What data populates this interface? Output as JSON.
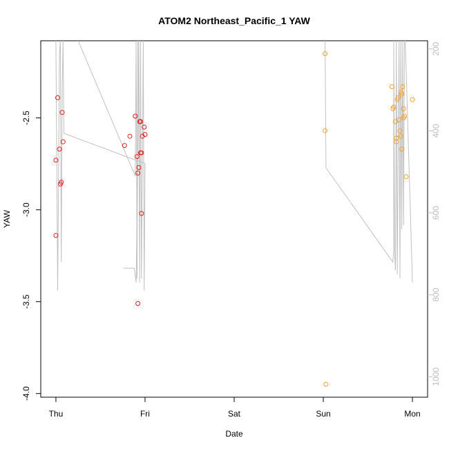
{
  "chart_data": {
    "type": "scatter",
    "title": "ATOM2 Northeast_Pacific_1 YAW",
    "xlabel": "Date",
    "ylabel": "YAW",
    "x_ticks": [
      "Thu",
      "Fri",
      "Sat",
      "Sun",
      "Mon"
    ],
    "xlim_days": [
      -0.17,
      4.17
    ],
    "ylim": [
      -4.02,
      -2.08
    ],
    "y_ticks": [
      -4.0,
      -3.5,
      -3.0,
      -2.5
    ],
    "y_tick_labels": [
      "-4.0",
      "-3.5",
      "-3.0",
      "-2.5"
    ],
    "y2_ticks": [
      200,
      400,
      600,
      800,
      1000
    ],
    "y2_tick_labels": [
      "200",
      "400",
      "600",
      "800",
      "1000"
    ],
    "y2lim": [
      1050,
      180
    ],
    "grid": false,
    "legend": "none",
    "colors": {
      "red_points": "#e41a1c",
      "orange_points": "#f0a030",
      "line": "#c0c0c0",
      "right_axis": "#bdbdbd"
    },
    "series": [
      {
        "color": "red",
        "points": [
          {
            "x": 0.0,
            "y": -2.73
          },
          {
            "x": 0.0,
            "y": -3.14
          },
          {
            "x": 0.02,
            "y": -2.39
          },
          {
            "x": 0.04,
            "y": -2.67
          },
          {
            "x": 0.05,
            "y": -2.86
          },
          {
            "x": 0.06,
            "y": -2.85
          },
          {
            "x": 0.07,
            "y": -2.47
          },
          {
            "x": 0.08,
            "y": -2.63
          },
          {
            "x": 0.77,
            "y": -2.65
          },
          {
            "x": 0.83,
            "y": -2.6
          },
          {
            "x": 0.89,
            "y": -2.49
          },
          {
            "x": 0.91,
            "y": -2.71
          },
          {
            "x": 0.92,
            "y": -3.51
          },
          {
            "x": 0.92,
            "y": -2.8
          },
          {
            "x": 0.93,
            "y": -2.77
          },
          {
            "x": 0.94,
            "y": -2.52
          },
          {
            "x": 0.95,
            "y": -2.52
          },
          {
            "x": 0.95,
            "y": -2.69
          },
          {
            "x": 0.96,
            "y": -2.69
          },
          {
            "x": 0.96,
            "y": -3.02
          },
          {
            "x": 0.97,
            "y": -2.6
          },
          {
            "x": 0.99,
            "y": -2.55
          },
          {
            "x": 1.0,
            "y": -2.59
          }
        ]
      },
      {
        "color": "orange",
        "points": [
          {
            "x": 3.02,
            "y": -2.15
          },
          {
            "x": 3.02,
            "y": -2.57
          },
          {
            "x": 3.03,
            "y": -3.95
          },
          {
            "x": 3.77,
            "y": -2.33
          },
          {
            "x": 3.78,
            "y": -2.45
          },
          {
            "x": 3.79,
            "y": -2.44
          },
          {
            "x": 3.81,
            "y": -2.52
          },
          {
            "x": 3.82,
            "y": -2.61
          },
          {
            "x": 3.82,
            "y": -2.63
          },
          {
            "x": 3.83,
            "y": -2.4
          },
          {
            "x": 3.84,
            "y": -2.39
          },
          {
            "x": 3.85,
            "y": -2.51
          },
          {
            "x": 3.86,
            "y": -2.57
          },
          {
            "x": 3.87,
            "y": -2.36
          },
          {
            "x": 3.87,
            "y": -2.6
          },
          {
            "x": 3.88,
            "y": -2.37
          },
          {
            "x": 3.88,
            "y": -2.67
          },
          {
            "x": 3.89,
            "y": -2.33
          },
          {
            "x": 3.9,
            "y": -2.45
          },
          {
            "x": 3.9,
            "y": -2.5
          },
          {
            "x": 3.91,
            "y": -2.49
          },
          {
            "x": 3.93,
            "y": -2.82
          },
          {
            "x": 4.0,
            "y": -2.4
          }
        ]
      }
    ],
    "line_series": {
      "color": "gray",
      "axis": "right",
      "points": [
        {
          "x": 0.0,
          "y": 180
        },
        {
          "x": 0.02,
          "y": 790
        },
        {
          "x": 0.04,
          "y": 210
        },
        {
          "x": 0.05,
          "y": 180
        },
        {
          "x": 0.06,
          "y": 720
        },
        {
          "x": 0.07,
          "y": 300
        },
        {
          "x": 0.08,
          "y": 180
        },
        {
          "x": 0.09,
          "y": 406
        },
        {
          "x": 1.0,
          "y": 480
        },
        {
          "x": 0.99,
          "y": 790
        },
        {
          "x": 0.98,
          "y": 180
        },
        {
          "x": 0.96,
          "y": 760
        },
        {
          "x": 0.95,
          "y": 180
        },
        {
          "x": 0.94,
          "y": 770
        },
        {
          "x": 0.93,
          "y": 180
        },
        {
          "x": 0.92,
          "y": 470
        },
        {
          "x": 0.9,
          "y": 770
        },
        {
          "x": 0.88,
          "y": 735
        },
        {
          "x": 0.76,
          "y": 735
        }
      ]
    },
    "line_series_2": {
      "color": "gray",
      "axis": "right",
      "points": [
        {
          "x": 0.25,
          "y": 180
        },
        {
          "x": 0.89,
          "y": 510
        },
        {
          "x": 0.9,
          "y": 180
        },
        {
          "x": 0.91,
          "y": 760
        },
        {
          "x": 0.92,
          "y": 180
        }
      ]
    },
    "line_series_3": {
      "color": "gray",
      "axis": "right",
      "points": [
        {
          "x": 3.02,
          "y": 180
        },
        {
          "x": 3.03,
          "y": 490
        },
        {
          "x": 3.78,
          "y": 720
        },
        {
          "x": 3.79,
          "y": 690
        },
        {
          "x": 3.79,
          "y": 180
        },
        {
          "x": 3.8,
          "y": 700
        },
        {
          "x": 3.81,
          "y": 740
        },
        {
          "x": 3.82,
          "y": 180
        },
        {
          "x": 3.83,
          "y": 750
        },
        {
          "x": 3.85,
          "y": 180
        },
        {
          "x": 3.86,
          "y": 760
        },
        {
          "x": 3.87,
          "y": 180
        },
        {
          "x": 3.88,
          "y": 640
        },
        {
          "x": 3.89,
          "y": 180
        },
        {
          "x": 3.9,
          "y": 630
        },
        {
          "x": 3.91,
          "y": 180
        },
        {
          "x": 3.92,
          "y": 180
        },
        {
          "x": 4.0,
          "y": 770
        },
        {
          "x": 3.92,
          "y": 180
        }
      ]
    }
  }
}
